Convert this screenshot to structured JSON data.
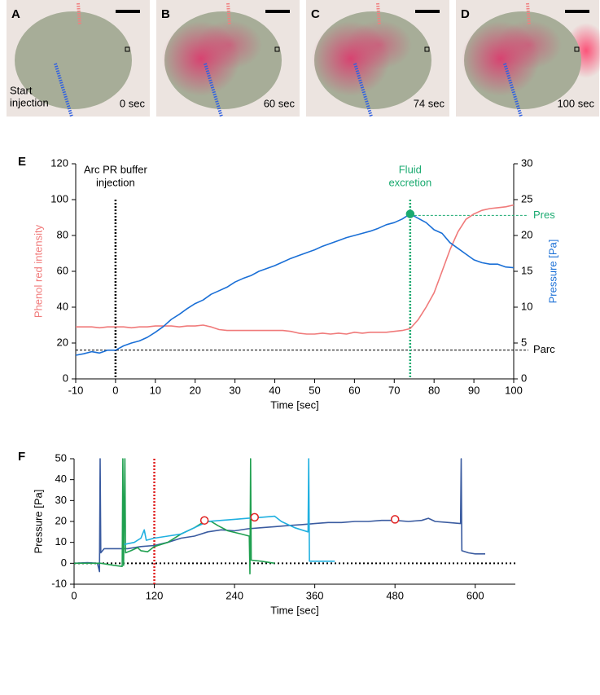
{
  "panels": [
    {
      "letter": "A",
      "time": "0 sec",
      "caption": [
        "Start",
        "injection"
      ]
    },
    {
      "letter": "B",
      "time": "60 sec"
    },
    {
      "letter": "C",
      "time": "74 sec"
    },
    {
      "letter": "D",
      "time": "100 sec"
    }
  ],
  "chart_data": [
    {
      "type": "line",
      "panel": "E",
      "xlabel": "Time [sec]",
      "ylabel": "Phenol red intensity",
      "y2label": "Pressure [Pa]",
      "xlim": [
        -10,
        100
      ],
      "xticks": [
        -10,
        0,
        10,
        20,
        30,
        40,
        50,
        60,
        70,
        80,
        90,
        100
      ],
      "ylim": [
        0,
        120
      ],
      "yticks": [
        0,
        20,
        40,
        60,
        80,
        100,
        120
      ],
      "y2lim": [
        0,
        30
      ],
      "y2ticks": [
        0,
        5,
        10,
        15,
        20,
        25,
        30
      ],
      "x": [
        -10,
        -8,
        -6,
        -4,
        -2,
        0,
        2,
        4,
        6,
        8,
        10,
        12,
        14,
        16,
        18,
        20,
        22,
        24,
        26,
        28,
        30,
        32,
        34,
        36,
        38,
        40,
        42,
        44,
        46,
        48,
        50,
        52,
        54,
        56,
        58,
        60,
        62,
        64,
        66,
        68,
        70,
        72,
        74,
        76,
        78,
        80,
        82,
        84,
        86,
        88,
        90,
        92,
        94,
        96,
        98,
        100
      ],
      "series": [
        {
          "color": "#f07a7a",
          "values": [
            29,
            29,
            29,
            28.5,
            29,
            29,
            29,
            28.5,
            29,
            29,
            29.5,
            29.5,
            29.5,
            29,
            29.5,
            29.5,
            30,
            29,
            27.5,
            27,
            27,
            27,
            27,
            27,
            27,
            27,
            27,
            26.5,
            25.5,
            25,
            25,
            25.5,
            25,
            25.5,
            25,
            26,
            25.5,
            26,
            26,
            26,
            26.5,
            27,
            28,
            33,
            40,
            48,
            60,
            72,
            82,
            89,
            92,
            94,
            95,
            95.5,
            96,
            97
          ]
        },
        {
          "color": "#1a6fd6",
          "axis": "y2",
          "values": [
            3.3,
            3.5,
            3.8,
            3.6,
            4,
            4,
            4.6,
            5,
            5.3,
            5.8,
            6.5,
            7.3,
            8.3,
            9,
            9.8,
            10.5,
            11,
            11.8,
            12.3,
            12.8,
            13.5,
            14,
            14.4,
            15,
            15.4,
            15.8,
            16.3,
            16.8,
            17.2,
            17.6,
            18,
            18.5,
            18.9,
            19.3,
            19.7,
            20,
            20.3,
            20.6,
            21,
            21.5,
            21.8,
            22.3,
            23,
            22.4,
            21.8,
            20.8,
            20.3,
            19,
            18.2,
            17.4,
            16.6,
            16.2,
            16,
            16,
            15.6,
            15.5
          ]
        }
      ],
      "vlines": [
        {
          "x": 0,
          "color": "#000000",
          "label": [
            "Arc PR buffer",
            "injection"
          ]
        },
        {
          "x": 74,
          "color": "#1aaa70",
          "label": [
            "Fluid",
            "excretion"
          ]
        }
      ],
      "hlines": [
        {
          "y": 4,
          "axis": "y2",
          "color": "#000000",
          "label": "Parc"
        },
        {
          "y": 22.8,
          "x": 74,
          "axis": "y2",
          "color": "#1aaa70",
          "label": "Pres"
        }
      ],
      "points": [
        {
          "x": 74,
          "y": 23,
          "axis": "y2",
          "color": "#1aaa70",
          "fill": "#1aaa70"
        }
      ]
    },
    {
      "type": "line",
      "panel": "F",
      "xlabel": "Time [sec]",
      "ylabel": "Pressure [Pa]",
      "xlim": [
        0,
        660
      ],
      "xticks": [
        0,
        120,
        240,
        360,
        480,
        600
      ],
      "ylim": [
        -10,
        50
      ],
      "yticks": [
        -10,
        0,
        10,
        20,
        30,
        40,
        50
      ],
      "series": [
        {
          "color": "#3a5ba0",
          "x": [
            0,
            20,
            35,
            38,
            39,
            40,
            45,
            60,
            80,
            100,
            120,
            140,
            160,
            180,
            200,
            220,
            240,
            260,
            280,
            300,
            320,
            340,
            360,
            380,
            400,
            420,
            440,
            460,
            480,
            500,
            520,
            530,
            540,
            560,
            578,
            579,
            580,
            590,
            600,
            615
          ],
          "values": [
            0,
            0.3,
            0,
            -4,
            50,
            5,
            7,
            7,
            7,
            8,
            8.5,
            10,
            12,
            13,
            15,
            16,
            15.5,
            16.5,
            17,
            17.5,
            18,
            18.5,
            19,
            19.5,
            19.5,
            20,
            20,
            20.5,
            20.5,
            20,
            20.5,
            21.5,
            20,
            19.5,
            19,
            50,
            6,
            5,
            4.5,
            4.5
          ]
        },
        {
          "color": "#20a050",
          "x": [
            0,
            40,
            60,
            72,
            73,
            74,
            76,
            77,
            85,
            95,
            100,
            110,
            120,
            140,
            160,
            180,
            195,
            205,
            215,
            230,
            250,
            262,
            263,
            264,
            265,
            280,
            300
          ],
          "values": [
            0,
            0,
            -1,
            -1.5,
            50,
            -1,
            50,
            5,
            6,
            7.5,
            6,
            5.5,
            8,
            10,
            14,
            17,
            20,
            20,
            18,
            15.5,
            14,
            13,
            -5,
            50,
            1.5,
            1,
            0
          ]
        },
        {
          "color": "#20b0e0",
          "x": [
            75,
            90,
            100,
            105,
            108,
            120,
            140,
            160,
            180,
            200,
            220,
            240,
            260,
            280,
            300,
            310,
            330,
            350,
            351,
            352,
            360,
            390
          ],
          "values": [
            9,
            10,
            12,
            16,
            11,
            12,
            13,
            14,
            17,
            20,
            20.5,
            21,
            21.5,
            22,
            22.5,
            20,
            17,
            15,
            50,
            1,
            1,
            1
          ]
        }
      ],
      "vlines": [
        {
          "x": 120,
          "color": "#e02020"
        }
      ],
      "hlines": [
        {
          "y": 0,
          "color": "#000000"
        }
      ],
      "points": [
        {
          "x": 195,
          "y": 20.5,
          "color": "#e02020",
          "fill": "#ffffff"
        },
        {
          "x": 270,
          "y": 22,
          "color": "#e02020",
          "fill": "#ffffff"
        },
        {
          "x": 480,
          "y": 21,
          "color": "#e02020",
          "fill": "#ffffff"
        }
      ]
    }
  ]
}
